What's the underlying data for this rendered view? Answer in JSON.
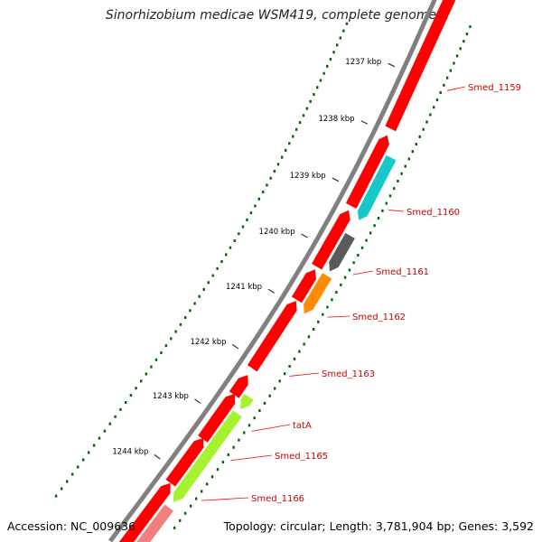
{
  "title": "Sinorhizobium medicae WSM419, complete genome",
  "accession_text": "Accession: NC_009636",
  "summary_text": "Topology: circular; Length: 3,781,904 bp; Genes: 3,592",
  "ruler": {
    "ticks": [
      "1237 kbp",
      "1238 kbp",
      "1239 kbp",
      "1240 kbp",
      "1241 kbp",
      "1242 kbp",
      "1243 kbp",
      "1244 kbp"
    ]
  },
  "genes": [
    {
      "label": "Smed_1159",
      "color": "#ff0000",
      "strand": "forward"
    },
    {
      "label": "Smed_1160",
      "color": "#16c8c8",
      "strand": "reverse"
    },
    {
      "label": "Smed_1161",
      "color": "#5a5a5a",
      "strand": "reverse"
    },
    {
      "label": "Smed_1162",
      "color": "#ff8c00",
      "strand": "reverse"
    },
    {
      "label": "Smed_1163",
      "color": "#ff0000",
      "strand": "forward"
    },
    {
      "label": "tatA",
      "color": "#a6f22f",
      "strand": "reverse"
    },
    {
      "label": "Smed_1165",
      "color": "#a6f22f",
      "strand": "reverse"
    },
    {
      "label": "Smed_1166",
      "color": "#f08080",
      "strand": "reverse"
    }
  ],
  "colors": {
    "forward_cds": "#ff0000",
    "backbone": "#808080",
    "gc_skew": "#006400",
    "label_text": "#cc0000",
    "label_line": "#ff0000"
  }
}
